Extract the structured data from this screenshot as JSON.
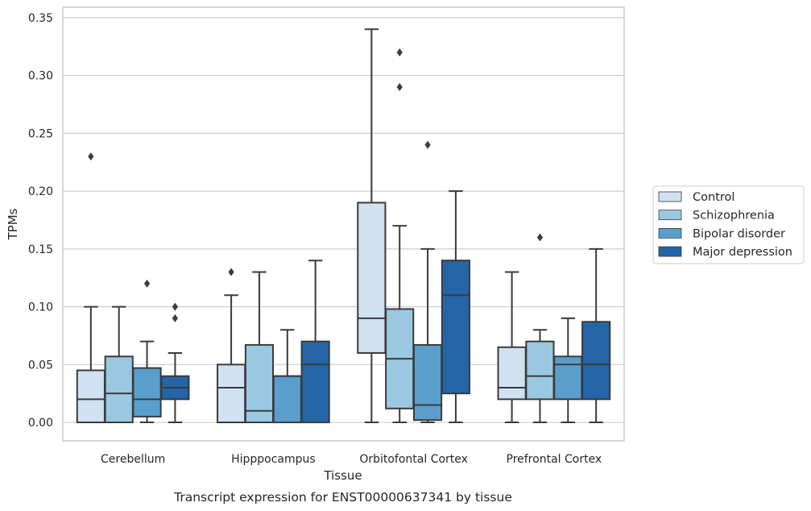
{
  "chart_data": {
    "type": "box",
    "caption": "Transcript expression for ENST00000637341 by tissue",
    "xlabel": "Tissue",
    "ylabel": "TPMs",
    "ylim": [
      -0.016,
      0.359
    ],
    "yticks": [
      "0.00",
      "0.05",
      "0.10",
      "0.15",
      "0.20",
      "0.25",
      "0.30",
      "0.35"
    ],
    "grid": true,
    "legend_position": "right",
    "categories": [
      "Cerebellum",
      "Hipppocampus",
      "Orbitofontal Cortex",
      "Prefrontal Cortex"
    ],
    "series": [
      {
        "name": "Control",
        "color": "#d0e1f2",
        "boxes": [
          {
            "whisker_low": 0,
            "q1": 0,
            "median": 0.02,
            "q3": 0.045,
            "whisker_high": 0.1,
            "outliers": [
              0.23
            ]
          },
          {
            "whisker_low": 0,
            "q1": 0,
            "median": 0.03,
            "q3": 0.05,
            "whisker_high": 0.11,
            "outliers": [
              0.13
            ]
          },
          {
            "whisker_low": 0,
            "q1": 0.06,
            "median": 0.09,
            "q3": 0.19,
            "whisker_high": 0.34,
            "outliers": []
          },
          {
            "whisker_low": 0,
            "q1": 0.02,
            "median": 0.03,
            "q3": 0.065,
            "whisker_high": 0.13,
            "outliers": []
          }
        ]
      },
      {
        "name": "Schizophrenia",
        "color": "#9ac8e0",
        "boxes": [
          {
            "whisker_low": 0,
            "q1": 0,
            "median": 0.025,
            "q3": 0.057,
            "whisker_high": 0.1,
            "outliers": []
          },
          {
            "whisker_low": 0,
            "q1": 0,
            "median": 0.01,
            "q3": 0.067,
            "whisker_high": 0.13,
            "outliers": []
          },
          {
            "whisker_low": 0,
            "q1": 0.012,
            "median": 0.055,
            "q3": 0.098,
            "whisker_high": 0.17,
            "outliers": [
              0.29,
              0.32
            ]
          },
          {
            "whisker_low": 0,
            "q1": 0.02,
            "median": 0.04,
            "q3": 0.07,
            "whisker_high": 0.08,
            "outliers": [
              0.16
            ]
          }
        ]
      },
      {
        "name": "Bipolar disorder",
        "color": "#5a9fcc",
        "boxes": [
          {
            "whisker_low": 0,
            "q1": 0.005,
            "median": 0.02,
            "q3": 0.047,
            "whisker_high": 0.07,
            "outliers": [
              0.12
            ]
          },
          {
            "whisker_low": 0,
            "q1": 0,
            "median": 0.04,
            "q3": 0.04,
            "whisker_high": 0.08,
            "outliers": []
          },
          {
            "whisker_low": 0,
            "q1": 0.002,
            "median": 0.015,
            "q3": 0.067,
            "whisker_high": 0.15,
            "outliers": [
              0.24
            ]
          },
          {
            "whisker_low": 0,
            "q1": 0.02,
            "median": 0.05,
            "q3": 0.057,
            "whisker_high": 0.09,
            "outliers": []
          }
        ]
      },
      {
        "name": "Major depression",
        "color": "#2365a6",
        "boxes": [
          {
            "whisker_low": 0,
            "q1": 0.02,
            "median": 0.03,
            "q3": 0.04,
            "whisker_high": 0.06,
            "outliers": [
              0.09,
              0.1
            ]
          },
          {
            "whisker_low": 0,
            "q1": 0,
            "median": 0.05,
            "q3": 0.07,
            "whisker_high": 0.14,
            "outliers": []
          },
          {
            "whisker_low": 0,
            "q1": 0.025,
            "median": 0.11,
            "q3": 0.14,
            "whisker_high": 0.2,
            "outliers": []
          },
          {
            "whisker_low": 0,
            "q1": 0.02,
            "median": 0.05,
            "q3": 0.087,
            "whisker_high": 0.15,
            "outliers": []
          }
        ]
      }
    ],
    "colors": {
      "grid": "#cccccc",
      "frame": "#cccccc",
      "line": "#3b3b3b"
    }
  }
}
